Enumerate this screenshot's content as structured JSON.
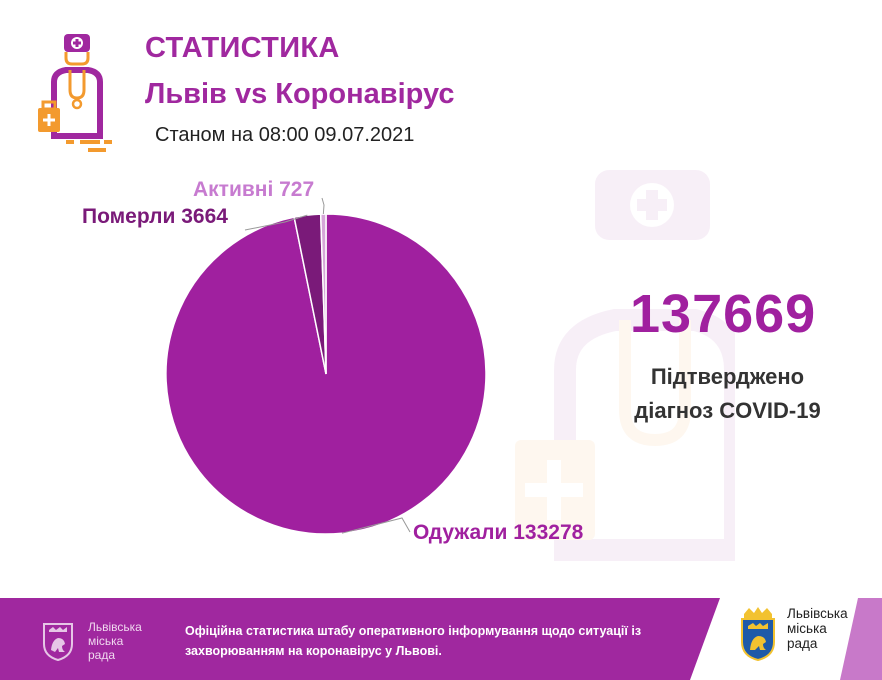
{
  "header": {
    "title": "СТАТИСТИКА",
    "subtitle": "Львів vs Коронавірус",
    "date_line": "Станом на 08:00 09.07.2021"
  },
  "chart_data": {
    "type": "pie",
    "slices": [
      {
        "label": "Одужали",
        "value": 133278,
        "color": "#a0209f"
      },
      {
        "label": "Померли",
        "value": 3664,
        "color": "#7a1a79"
      },
      {
        "label": "Активні",
        "value": 727,
        "color": "#d6a6d8"
      }
    ],
    "labels": {
      "recovered": "Одужали 133278",
      "dead": "Померли 3664",
      "active": "Активні 727"
    }
  },
  "confirmed": {
    "number": "137669",
    "caption_line1": "Підтверджено",
    "caption_line2": "діагноз COVID-19"
  },
  "footer": {
    "text": "Офіційна статистика штабу оперативного інформування щодо ситуації із захворюванням на коронавірус у Львові.",
    "org_left": [
      "Львівська",
      "міська",
      "рада"
    ],
    "org_right": [
      "Львівська",
      "міська",
      "рада"
    ]
  },
  "icons": {
    "doctor": "doctor-icon",
    "background_doctor": "doctor-watermark-icon",
    "crest": "lviv-crest-icon"
  },
  "colors": {
    "brand": "#a0289f",
    "accent_orange": "#f39a2e",
    "stripe": "#c879c9"
  }
}
